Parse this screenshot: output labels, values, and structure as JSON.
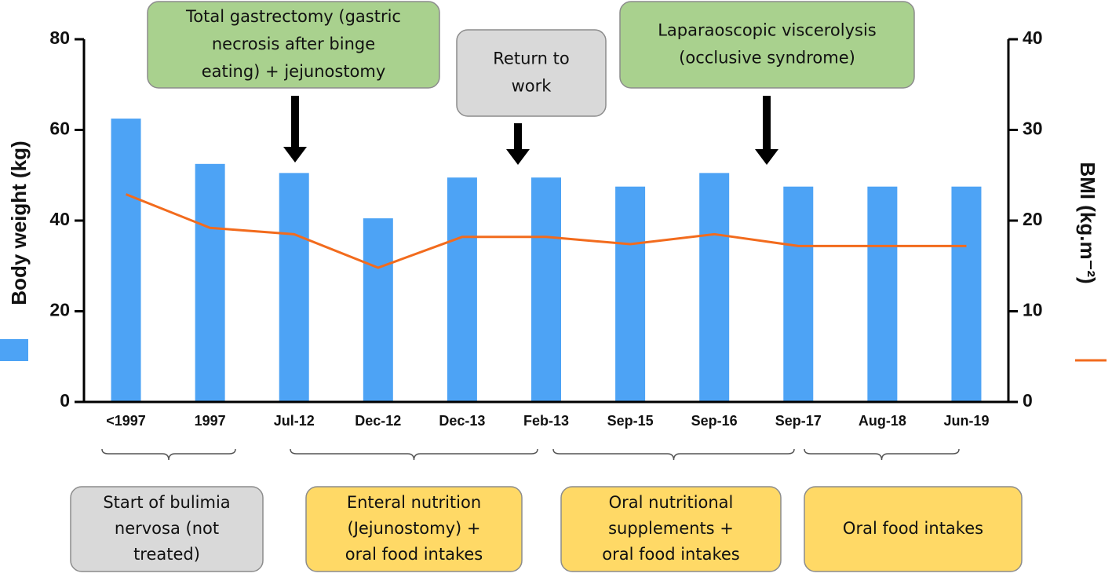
{
  "chart_data": {
    "type": "bar",
    "categories": [
      "<1997",
      "1997",
      "Jul-12",
      "Dec-12",
      "Dec-13",
      "Feb-13",
      "Sep-15",
      "Sep-16",
      "Sep-17",
      "Aug-18",
      "Jun-19"
    ],
    "series": [
      {
        "type": "bar",
        "color": "#4da3f5",
        "values": [
          62.5,
          52.5,
          50.5,
          40.5,
          49.5,
          49.5,
          47.5,
          50.5,
          47.5,
          47.5,
          47.5
        ]
      },
      {
        "type": "line",
        "axis": "y2",
        "color": "#f26b1d",
        "values": [
          22.9,
          19.2,
          18.5,
          14.8,
          18.2,
          18.2,
          17.4,
          18.5,
          17.2,
          17.2,
          17.2
        ]
      }
    ],
    "ylabel": "Body weight (kg)",
    "y2label": "BMI (kg.m⁻²)",
    "ylim": [
      0,
      80
    ],
    "yticks": [
      0,
      20,
      40,
      60,
      80
    ],
    "y2lim": [
      0,
      40
    ],
    "y2ticks": [
      0,
      10,
      20,
      30,
      40
    ],
    "grid": false,
    "annotations": [
      {
        "lines": [
          "Total gastrectomy (gastric",
          "necrosis after binge",
          "eating) + jejunostomy"
        ],
        "color": "#a9d18e"
      },
      {
        "lines": [
          "Return to",
          "work"
        ],
        "color": "#d9d9d9"
      },
      {
        "lines": [
          "Laparaoscopic viscerolysis",
          "(occlusive syndrome)"
        ],
        "color": "#a9d18e"
      }
    ],
    "phases": [
      {
        "lines": [
          "Start of bulimia",
          "nervosa (not",
          "treated)"
        ],
        "color": "#d9d9d9"
      },
      {
        "lines": [
          "Enteral nutrition",
          "(Jejunostomy) +",
          "oral food intakes"
        ],
        "color": "#ffd966"
      },
      {
        "lines": [
          "Oral nutritional",
          "supplements +",
          "oral food intakes"
        ],
        "color": "#ffd966"
      },
      {
        "lines": [
          "Oral food intakes"
        ],
        "color": "#ffd966"
      }
    ]
  }
}
